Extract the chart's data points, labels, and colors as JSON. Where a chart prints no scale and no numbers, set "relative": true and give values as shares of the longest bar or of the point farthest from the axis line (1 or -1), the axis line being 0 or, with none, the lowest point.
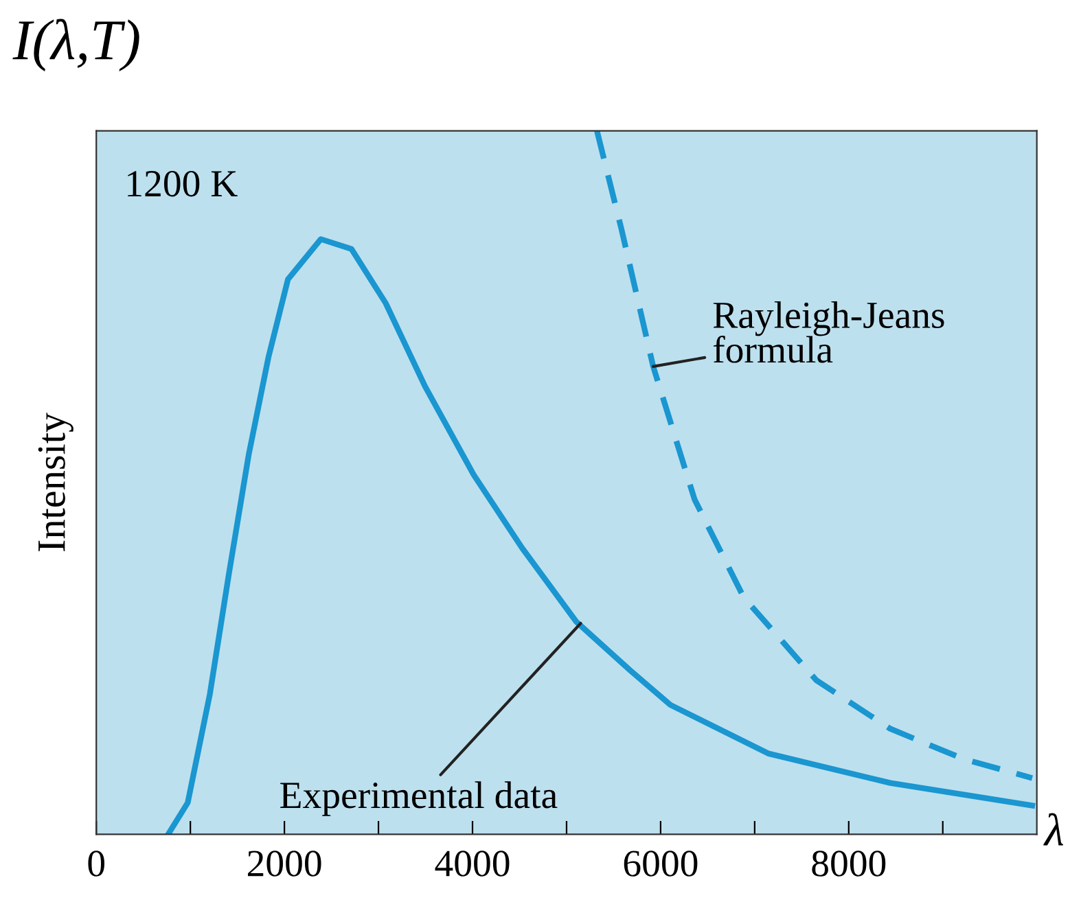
{
  "chart_data": {
    "type": "line",
    "title": "I(λ,T)",
    "ylabel": "Intensity",
    "xlabel": "λ",
    "relative": true,
    "annotations": [
      "1200 K",
      {
        "text": "Experimental data",
        "x": 5150,
        "y": 0.3
      },
      {
        "text": "Rayleigh-Jeans\nformula",
        "x": 5921,
        "y": 0.665
      }
    ],
    "series": [
      {
        "color": "#1a96d0",
        "line_style": "solid",
        "x": [
          764,
          972,
          1207,
          1412,
          1621,
          1830,
          2038,
          2387,
          2713,
          3077,
          3494,
          4013,
          4527,
          5105,
          5677,
          6104,
          7143,
          8443,
          9951
        ],
        "values": [
          0,
          0.045,
          0.199,
          0.372,
          0.54,
          0.678,
          0.789,
          0.846,
          0.832,
          0.755,
          0.637,
          0.511,
          0.407,
          0.302,
          0.233,
          0.184,
          0.115,
          0.073,
          0.041
        ]
      },
      {
        "color": "#1a96d0",
        "line_style": "dashed",
        "x": [
          5323,
          5584,
          5921,
          6361,
          6883,
          7656,
          8443,
          9223,
          9951
        ],
        "values": [
          1.0,
          0.86,
          0.665,
          0.476,
          0.337,
          0.219,
          0.15,
          0.107,
          0.08
        ]
      }
    ],
    "xlim": [
      0,
      10000
    ],
    "xticks": [
      0,
      {
        "value": 1000,
        "label": null
      },
      2000,
      {
        "value": 3000,
        "label": null
      },
      4000,
      {
        "value": 5000,
        "label": null
      },
      6000,
      {
        "value": 7000,
        "label": null
      },
      8000,
      {
        "value": 9000,
        "label": null
      }
    ],
    "grid": false,
    "legend": false
  }
}
